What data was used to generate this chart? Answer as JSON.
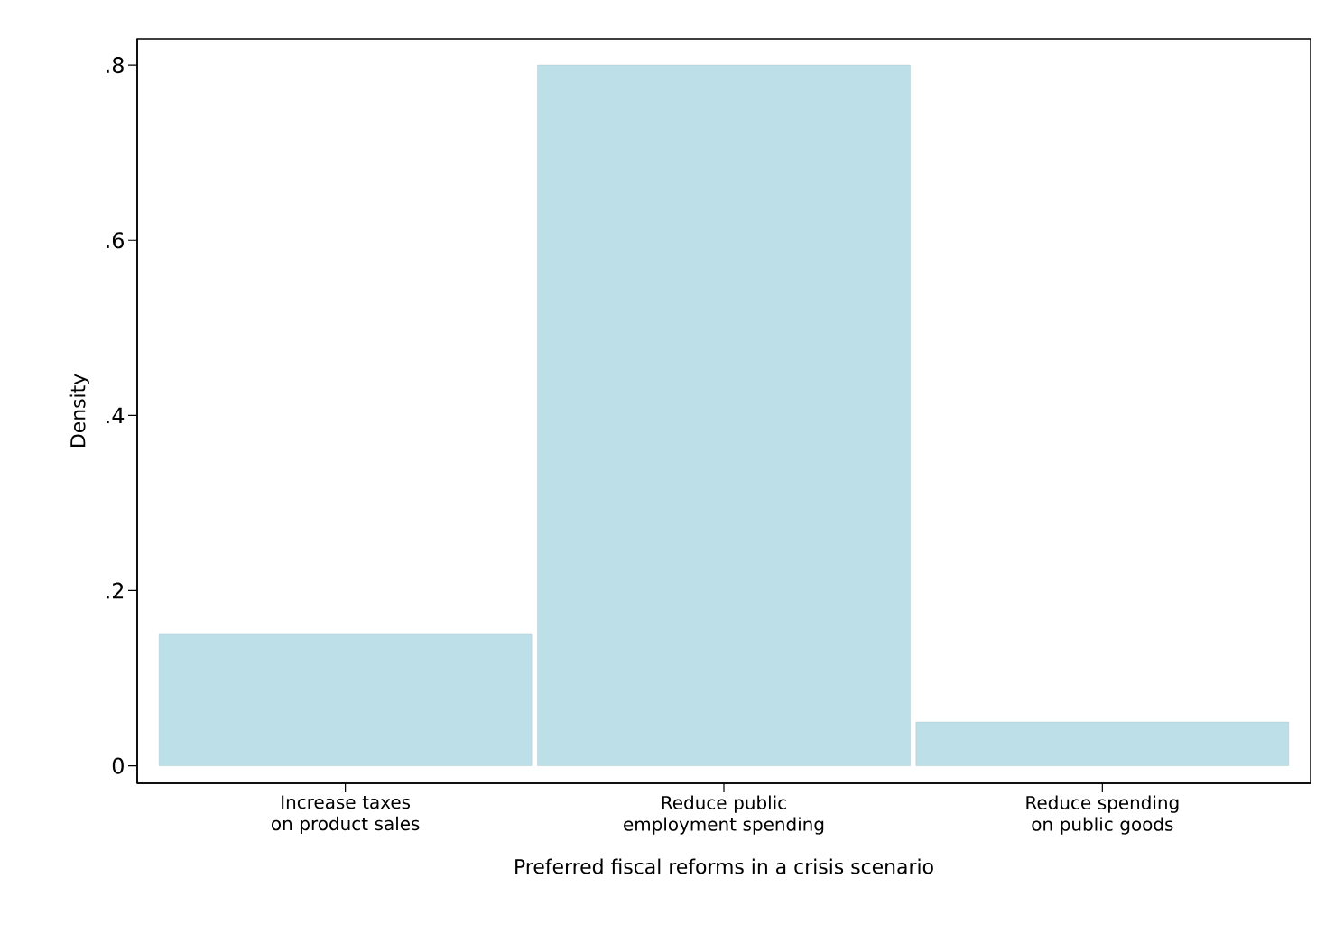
{
  "chart_data": {
    "type": "bar",
    "xlabel": "Preferred fiscal reforms in a crisis scenario",
    "ylabel": "Density",
    "categories": [
      "Increase taxes on product sales",
      "Reduce public employment spending",
      "Reduce spending on public goods"
    ],
    "values": [
      0.15,
      0.8,
      0.05
    ],
    "color": "#bddfe8",
    "ylim": [
      -0.02,
      0.83
    ],
    "yticks": [
      0,
      {
        "value": 0.2,
        "label": ".2"
      },
      {
        "value": 0.4,
        "label": ".4"
      },
      {
        "value": 0.6,
        "label": ".6"
      },
      {
        "value": 0.8,
        "label": ".8"
      }
    ]
  }
}
